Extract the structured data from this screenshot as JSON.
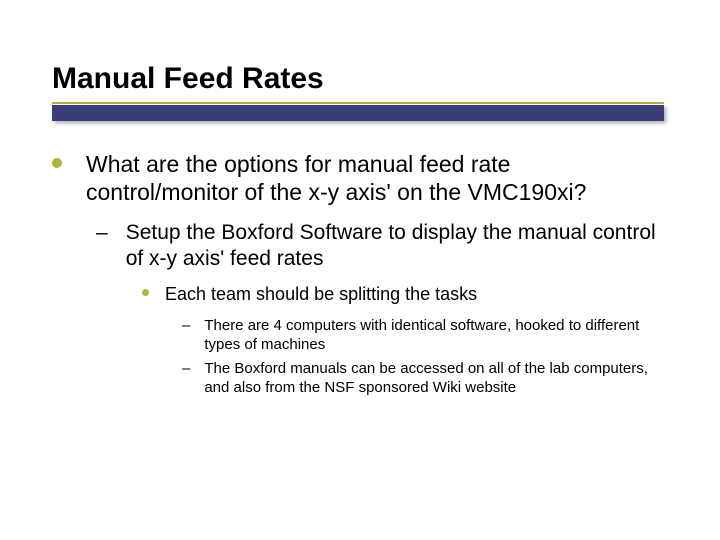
{
  "colors": {
    "accent": "#b0b43a",
    "bar": "#3a3e78",
    "text": "#000000",
    "background": "#ffffff"
  },
  "typography": {
    "font_family": "Arial",
    "title_size_pt": 30,
    "title_weight": "bold",
    "l1_size_pt": 23,
    "l2_size_pt": 21,
    "l3_size_pt": 18,
    "l4_size_pt": 15
  },
  "title": "Manual Feed Rates",
  "bullets": {
    "l1": "What are the options for manual feed rate control/monitor of the x-y axis' on the VMC190xi?",
    "l2": "Setup the Boxford Software to display the manual control of x-y axis' feed rates",
    "l3": "Each team should be splitting the tasks",
    "l4a": "There are 4 computers with identical software, hooked to different types of machines",
    "l4b": "The Boxford manuals can be accessed on all of the lab computers, and also from the NSF sponsored Wiki website"
  }
}
